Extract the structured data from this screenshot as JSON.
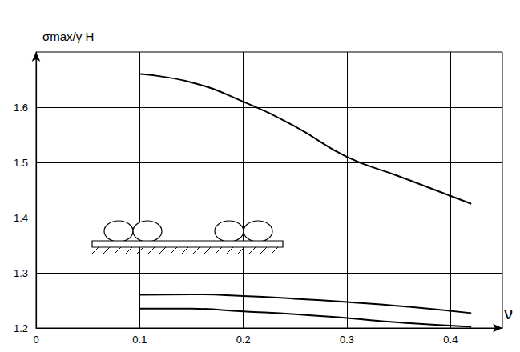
{
  "chart_data": {
    "type": "line",
    "x_label": "ν",
    "y_label": "σmax/γ H",
    "x": [
      0.1,
      0.15,
      0.2,
      0.25,
      0.3,
      0.35,
      0.42
    ],
    "series": [
      {
        "color": "#000000",
        "values": [
          1.66,
          1.645,
          1.61,
          1.565,
          1.51,
          1.475,
          1.425
        ]
      },
      {
        "color": "#000000",
        "values": [
          1.26,
          1.261,
          1.258,
          1.253,
          1.247,
          1.24,
          1.227
        ]
      },
      {
        "color": "#000000",
        "values": [
          1.235,
          1.235,
          1.23,
          1.225,
          1.218,
          1.21,
          1.202
        ]
      }
    ],
    "xlim": [
      0,
      0.45
    ],
    "xticks": [
      0,
      0.1,
      0.2,
      0.3,
      0.4
    ],
    "ylim": [
      1.2,
      1.7
    ],
    "yticks": [
      1.2,
      1.3,
      1.4,
      1.5,
      1.6
    ],
    "grid": true
  }
}
